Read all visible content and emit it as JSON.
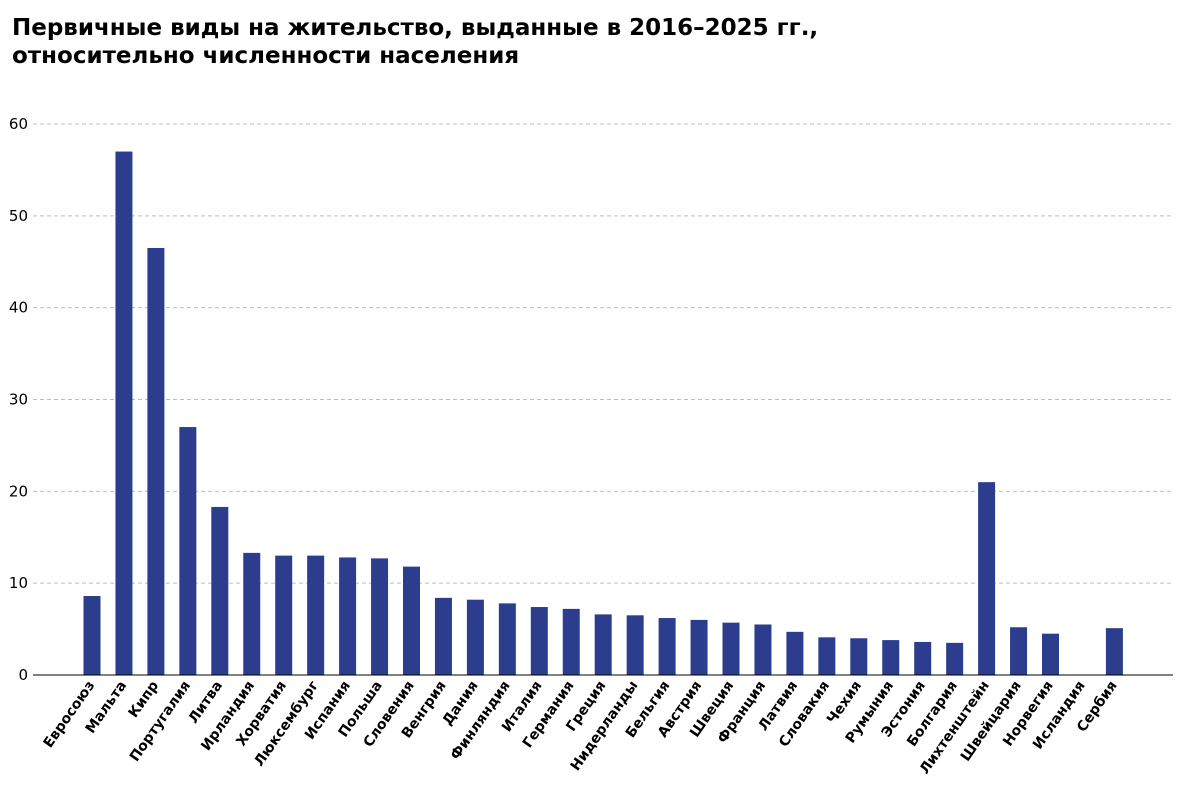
{
  "chart_data": {
    "type": "bar",
    "title": "Первичные виды на жительство, выданные в 2016–2025 гг.,\nотносительно численности населения",
    "xlabel": "",
    "ylabel": "",
    "ylim": [
      0,
      60
    ],
    "yticks": [
      "0",
      "10",
      "20",
      "30",
      "40",
      "50",
      "60"
    ],
    "grid": "horizontal dashed",
    "bar_color": "#2b3d8c",
    "categories": [
      "Евросоюз",
      "Мальта",
      "Кипр",
      "Португалия",
      "Литва",
      "Ирландия",
      "Хорватия",
      "Люксембург",
      "Испания",
      "Польша",
      "Словения",
      "Венгрия",
      "Дания",
      "Финляндия",
      "Италия",
      "Германия",
      "Греция",
      "Нидерланды",
      "Бельгия",
      "Австрия",
      "Швеция",
      "Франция",
      "Латвия",
      "Словакия",
      "Чехия",
      "Румыния",
      "Эстония",
      "Болгария",
      "Лихтенштейн",
      "Швейцария",
      "Норвегия",
      "Исландия",
      "Сербия"
    ],
    "values": [
      8.6,
      57.0,
      46.5,
      27.0,
      18.3,
      13.3,
      13.0,
      13.0,
      12.8,
      12.7,
      11.8,
      8.4,
      8.2,
      7.8,
      7.4,
      7.2,
      6.6,
      6.5,
      6.2,
      6.0,
      5.7,
      5.5,
      4.7,
      4.1,
      4.0,
      3.8,
      3.6,
      3.5,
      21.0,
      5.2,
      4.5,
      null,
      5.1
    ]
  }
}
